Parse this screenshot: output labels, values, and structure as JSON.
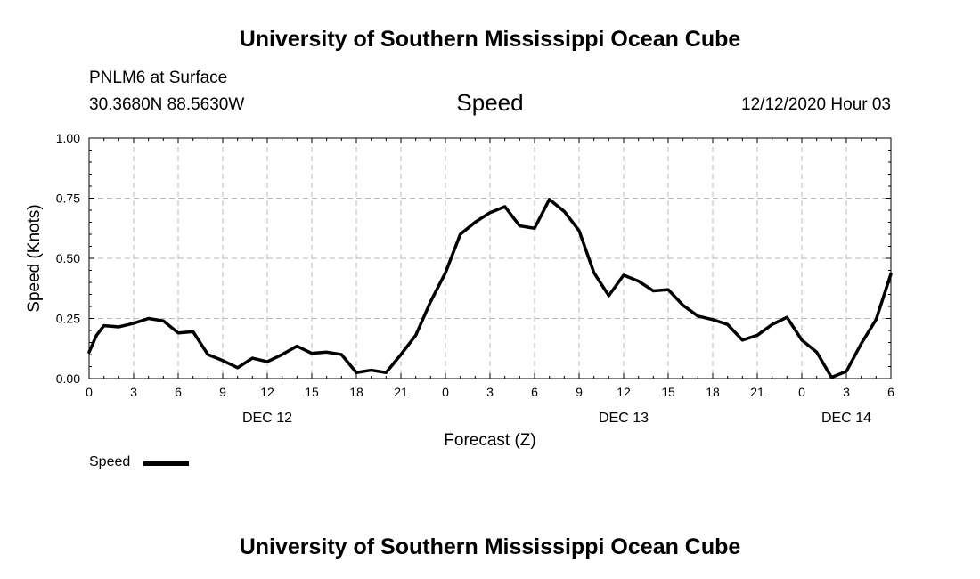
{
  "header": {
    "title": "University of Southern Mississippi Ocean Cube",
    "station": "PNLM6 at Surface",
    "coords": "30.3680N 88.5630W",
    "chart_title": "Speed",
    "datetime": "12/12/2020 Hour 03"
  },
  "footer": {
    "title": "University of Southern Mississippi Ocean Cube"
  },
  "legend": {
    "label": "Speed"
  },
  "colors": {
    "line": "#000000",
    "grid": "#bbbbbb",
    "background": "#ffffff"
  },
  "chart_data": {
    "type": "line",
    "title": "Speed",
    "xlabel": "Forecast (Z)",
    "ylabel": "Speed (Knots)",
    "xlim": [
      0,
      54
    ],
    "ylim": [
      0,
      1
    ],
    "x_ticks": [
      0,
      3,
      6,
      9,
      12,
      15,
      18,
      21,
      24,
      27,
      30,
      33,
      36,
      39,
      42,
      45,
      48,
      51,
      54
    ],
    "x_tick_labels": [
      "0",
      "3",
      "6",
      "9",
      "12",
      "15",
      "18",
      "21",
      "0",
      "3",
      "6",
      "9",
      "12",
      "15",
      "18",
      "21",
      "0",
      "3",
      "6"
    ],
    "y_ticks": [
      0,
      0.25,
      0.5,
      0.75,
      1.0
    ],
    "y_tick_labels": [
      "0.00",
      "0.25",
      "0.50",
      "0.75",
      "1.00"
    ],
    "day_labels": [
      {
        "x": 12,
        "label": "DEC 12"
      },
      {
        "x": 36,
        "label": "DEC 13"
      },
      {
        "x": 51,
        "label": "DEC 14"
      }
    ],
    "grid": true,
    "legend_position": "bottom-left",
    "series": [
      {
        "name": "Speed",
        "x": [
          0,
          0.5,
          1,
          2,
          3,
          4,
          5,
          6,
          7,
          8,
          9,
          10,
          11,
          12,
          13,
          14,
          15,
          16,
          17,
          18,
          19,
          20,
          21,
          22,
          23,
          24,
          25,
          26,
          27,
          28,
          29,
          30,
          31,
          32,
          33,
          34,
          35,
          36,
          37,
          38,
          39,
          40,
          41,
          42,
          43,
          44,
          45,
          46,
          47,
          48,
          49,
          50,
          51,
          52,
          53,
          54
        ],
        "values": [
          0.11,
          0.18,
          0.22,
          0.215,
          0.23,
          0.25,
          0.24,
          0.19,
          0.195,
          0.1,
          0.075,
          0.045,
          0.085,
          0.07,
          0.1,
          0.135,
          0.105,
          0.11,
          0.1,
          0.025,
          0.035,
          0.025,
          0.1,
          0.18,
          0.32,
          0.44,
          0.6,
          0.65,
          0.69,
          0.715,
          0.635,
          0.625,
          0.745,
          0.695,
          0.615,
          0.44,
          0.345,
          0.43,
          0.405,
          0.365,
          0.37,
          0.305,
          0.26,
          0.245,
          0.225,
          0.16,
          0.18,
          0.225,
          0.255,
          0.16,
          0.11,
          0.005,
          0.03,
          0.145,
          0.245,
          0.435
        ]
      }
    ]
  }
}
